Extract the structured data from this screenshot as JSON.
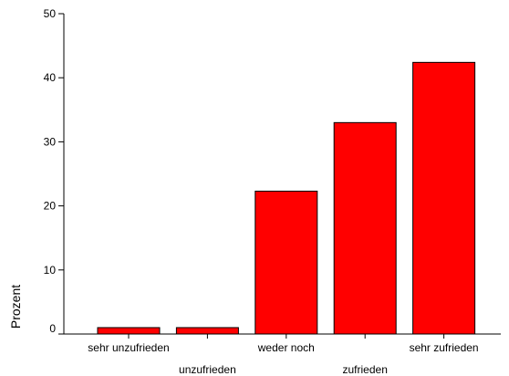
{
  "chart_data": {
    "type": "bar",
    "categories": [
      "sehr unzufrieden",
      "unzufrieden",
      "weder noch",
      "zufrieden",
      "sehr zufrieden"
    ],
    "values": [
      1.0,
      1.0,
      22.3,
      33.0,
      42.4
    ],
    "xlabel": "",
    "ylabel": "Prozent",
    "ylim": [
      0,
      50
    ],
    "yticks": [
      0,
      10,
      20,
      30,
      40,
      50
    ],
    "grid": false,
    "legend": "none",
    "bar_color": "#ff0000",
    "bar_edge_color": "#000000",
    "label_layout": "staggered"
  }
}
